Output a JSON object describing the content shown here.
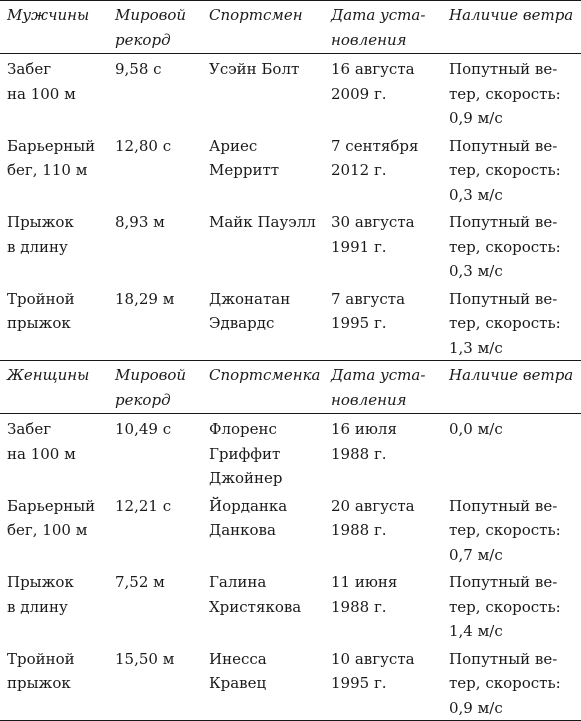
{
  "men_header": {
    "category": "Мужчины",
    "record": "Мировой\nрекорд",
    "athlete": "Спортсмен",
    "date": "Дата уста-\nновления",
    "wind": "Наличие ветра"
  },
  "men_rows": [
    {
      "event": "Забег\nна 100 м",
      "record": "9,58 с",
      "athlete": "Усэйн Болт",
      "date": "16 августа\n2009 г.",
      "wind": "Попутный ве-\nтер, скорость:\n0,9 м/с"
    },
    {
      "event": "Барьерный\nбег, 110 м",
      "record": "12,80 с",
      "athlete": "Ариес\nМерритт",
      "date": "7 сентября\n2012 г.",
      "wind": "Попутный ве-\nтер, скорость:\n0,3 м/с"
    },
    {
      "event": "Прыжок\nв длину",
      "record": "8,93 м",
      "athlete": "Майк Пауэлл",
      "date": "30 августа\n1991 г.",
      "wind": "Попутный ве-\nтер, скорость:\n0,3 м/с"
    },
    {
      "event": "Тройной\nпрыжок",
      "record": "18,29 м",
      "athlete": "Джонатан\nЭдвардс",
      "date": "7 августа\n1995 г.",
      "wind": "Попутный ве-\nтер, скорость:\n1,3 м/с"
    }
  ],
  "women_header": {
    "category": "Женщины",
    "record": "Мировой\nрекорд",
    "athlete": "Спортсменка",
    "date": "Дата уста-\nновления",
    "wind": "Наличие ветра"
  },
  "women_rows": [
    {
      "event": "Забег\nна 100 м",
      "record": "10,49 с",
      "athlete": "Флоренс\nГриффит\nДжойнер",
      "date": "16 июля\n1988 г.",
      "wind": "0,0 м/с"
    },
    {
      "event": "Барьерный\nбег, 100 м",
      "record": "12,21 с",
      "athlete": "Йорданка\nДанкова",
      "date": "20 августа\n1988 г.",
      "wind": "Попутный ве-\nтер, скорость:\n0,7 м/с"
    },
    {
      "event": "Прыжок\nв длину",
      "record": "7,52 м",
      "athlete": "Галина\nХристякова",
      "date": "11 июня\n1988 г.",
      "wind": "Попутный ве-\nтер, скорость:\n1,4 м/с"
    },
    {
      "event": "Тройной\nпрыжок",
      "record": "15,50 м",
      "athlete": "Инесса\nКравец",
      "date": "10 августа\n1995 г.",
      "wind": "Попутный ве-\nтер, скорость:\n0,9 м/с"
    }
  ]
}
